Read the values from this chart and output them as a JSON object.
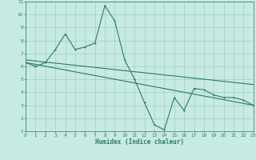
{
  "xlabel": "Humidex (Indice chaleur)",
  "xlim": [
    0,
    23
  ],
  "ylim": [
    1,
    11
  ],
  "xticks": [
    0,
    1,
    2,
    3,
    4,
    5,
    6,
    7,
    8,
    9,
    10,
    11,
    12,
    13,
    14,
    15,
    16,
    17,
    18,
    19,
    20,
    21,
    22,
    23
  ],
  "yticks": [
    1,
    2,
    3,
    4,
    5,
    6,
    7,
    8,
    9,
    10,
    11
  ],
  "bg_color": "#c8eae4",
  "grid_color": "#a0ccc4",
  "line_color": "#2a7a6a",
  "line1_x": [
    0,
    1,
    2,
    3,
    4,
    5,
    6,
    7,
    8,
    9,
    10,
    11,
    12,
    13,
    14,
    15,
    16,
    17,
    18,
    19,
    20,
    21,
    22,
    23
  ],
  "line1_y": [
    6.3,
    6.0,
    6.3,
    7.3,
    8.5,
    7.3,
    7.5,
    7.8,
    10.7,
    9.5,
    6.5,
    5.0,
    3.2,
    1.5,
    1.1,
    3.6,
    2.6,
    4.3,
    4.2,
    3.8,
    3.6,
    3.6,
    3.4,
    3.0
  ],
  "line2_x": [
    0,
    23
  ],
  "line2_y": [
    6.3,
    3.0
  ],
  "line3_x": [
    0,
    23
  ],
  "line3_y": [
    6.5,
    4.6
  ]
}
